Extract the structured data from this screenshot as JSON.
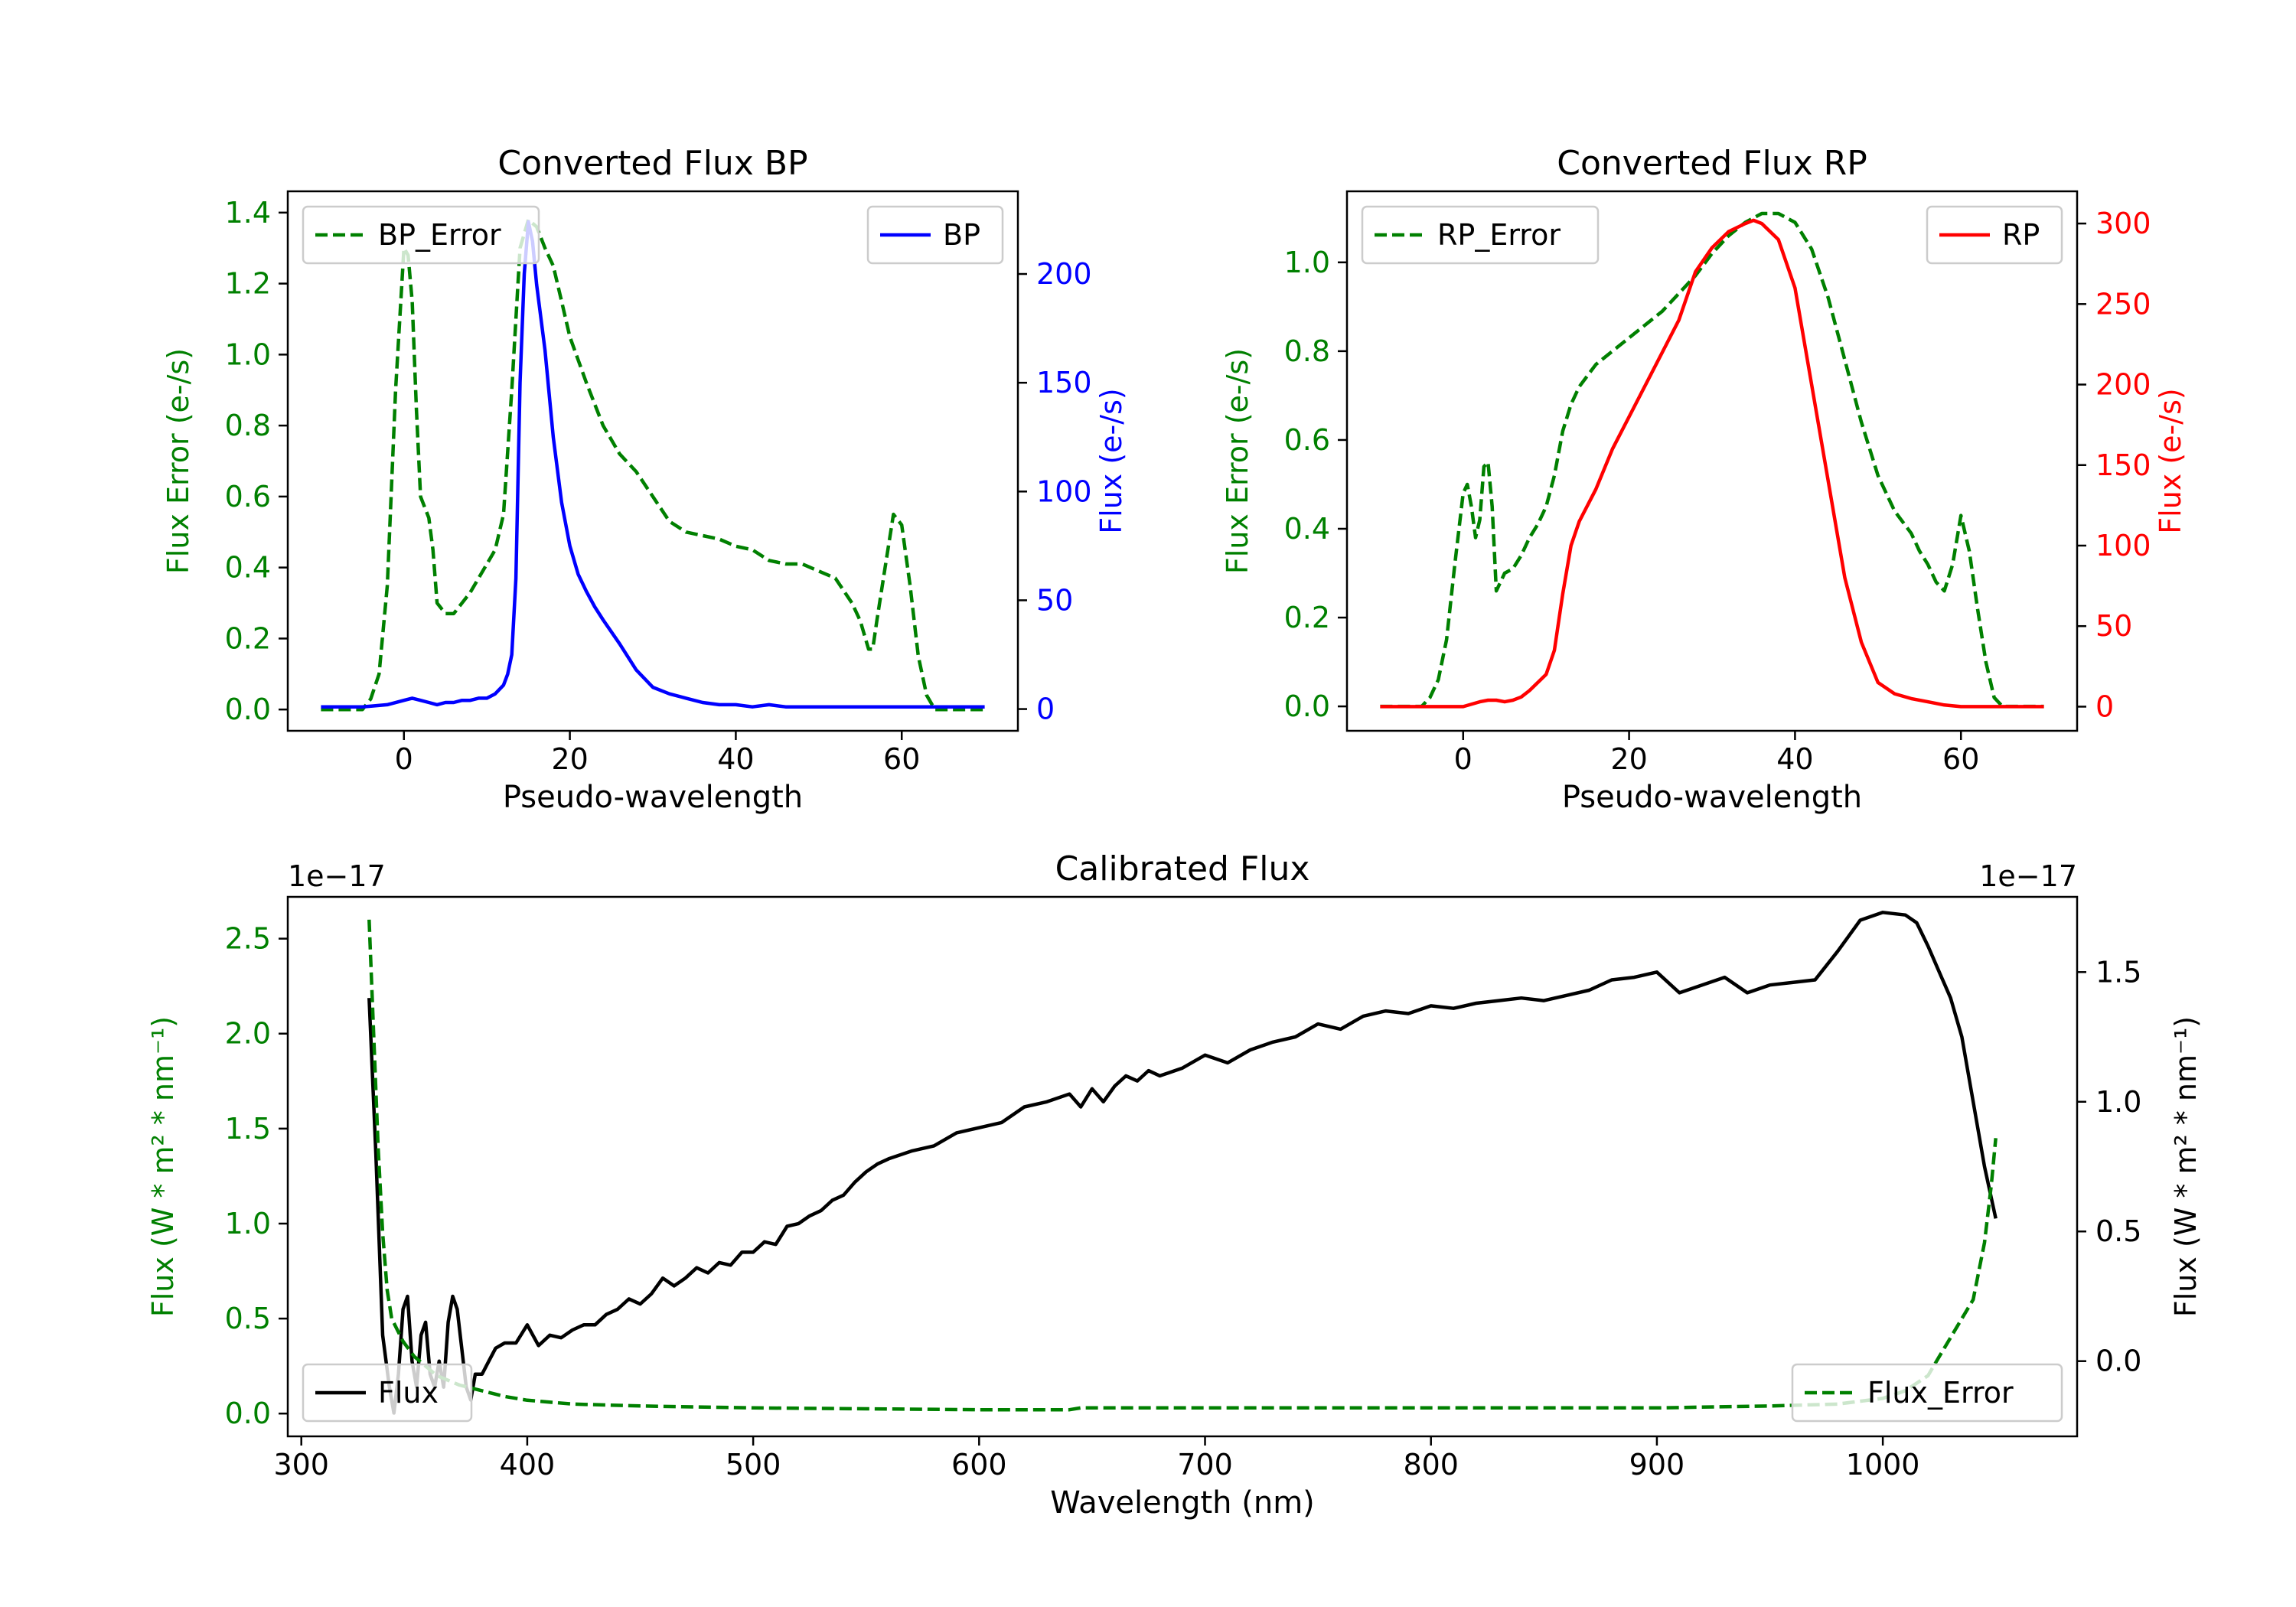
{
  "colors": {
    "err": "#008000",
    "bp": "#0000ff",
    "rp": "#ff0000",
    "flux": "#000000",
    "axis": "#000000"
  },
  "chart_data": [
    {
      "id": "bp",
      "type": "line",
      "title": "Converted Flux BP",
      "xlabel": "Pseudo-wavelength",
      "ylabel_left": "Flux Error (e-/s)",
      "ylabel_right": "Flux (e-/s)",
      "xlim": [
        -14,
        74
      ],
      "ylim_left": [
        -0.06,
        1.46
      ],
      "ylim_right": [
        -10,
        238
      ],
      "xticks": [
        0,
        20,
        40,
        60
      ],
      "xtick_labels": [
        "0",
        "20",
        "40",
        "60"
      ],
      "yticks_left": [
        0.0,
        0.2,
        0.4,
        0.6,
        0.8,
        1.0,
        1.2,
        1.4
      ],
      "ytick_labels_left": [
        "0.0",
        "0.2",
        "0.4",
        "0.6",
        "0.8",
        "1.0",
        "1.2",
        "1.4"
      ],
      "yticks_right": [
        0,
        50,
        100,
        150,
        200
      ],
      "ytick_labels_right": [
        "0",
        "50",
        "100",
        "150",
        "200"
      ],
      "legend_left": {
        "label": "BP_Error",
        "position": "upper left"
      },
      "legend_right": {
        "label": "BP",
        "position": "upper right"
      },
      "series": [
        {
          "name": "BP_Error",
          "axis": "left",
          "style": "dashed",
          "color": "#008000",
          "x": [
            -10,
            -5,
            -4,
            -3,
            -2,
            -1,
            0,
            0.5,
            1,
            1.5,
            2,
            3,
            3.5,
            4,
            5,
            6,
            7,
            8,
            9,
            10,
            11,
            12,
            13,
            14,
            15,
            16,
            17,
            18,
            19,
            20,
            22,
            24,
            26,
            28,
            30,
            32,
            34,
            36,
            38,
            40,
            42,
            44,
            46,
            48,
            50,
            52,
            54,
            55,
            56,
            56.5,
            57,
            58,
            59,
            60,
            61,
            62,
            63,
            64,
            65,
            70
          ],
          "y": [
            0.0,
            0.0,
            0.03,
            0.1,
            0.35,
            0.9,
            1.3,
            1.28,
            1.15,
            0.85,
            0.6,
            0.54,
            0.45,
            0.3,
            0.27,
            0.27,
            0.3,
            0.33,
            0.37,
            0.41,
            0.45,
            0.55,
            0.9,
            1.3,
            1.38,
            1.36,
            1.3,
            1.25,
            1.15,
            1.05,
            0.92,
            0.8,
            0.72,
            0.67,
            0.6,
            0.53,
            0.5,
            0.49,
            0.48,
            0.46,
            0.45,
            0.42,
            0.41,
            0.41,
            0.39,
            0.37,
            0.3,
            0.25,
            0.17,
            0.17,
            0.25,
            0.4,
            0.55,
            0.52,
            0.35,
            0.15,
            0.04,
            0.0,
            0.0,
            0.0
          ]
        },
        {
          "name": "BP",
          "axis": "right",
          "style": "solid",
          "color": "#0000ff",
          "x": [
            -10,
            -5,
            -2,
            0,
            1,
            2,
            3,
            4,
            5,
            6,
            7,
            8,
            9,
            10,
            11,
            12,
            12.5,
            13,
            13.5,
            14,
            14.5,
            15,
            15.5,
            16,
            17,
            18,
            19,
            20,
            21,
            22,
            23,
            24,
            26,
            28,
            30,
            32,
            34,
            36,
            38,
            40,
            42,
            44,
            46,
            48,
            50,
            55,
            60,
            65,
            70
          ],
          "y": [
            1,
            1,
            2,
            4,
            5,
            4,
            3,
            2,
            3,
            3,
            4,
            4,
            5,
            5,
            7,
            11,
            16,
            25,
            60,
            150,
            200,
            224,
            215,
            195,
            165,
            125,
            95,
            75,
            62,
            54,
            47,
            41,
            30,
            18,
            10,
            7,
            5,
            3,
            2,
            2,
            1,
            2,
            1,
            1,
            1,
            1,
            1,
            1,
            1
          ]
        }
      ]
    },
    {
      "id": "rp",
      "type": "line",
      "title": "Converted Flux RP",
      "xlabel": "Pseudo-wavelength",
      "ylabel_left": "Flux Error (e-/s)",
      "ylabel_right": "Flux (e-/s)",
      "xlim": [
        -14,
        74
      ],
      "ylim_left": [
        -0.055,
        1.16
      ],
      "ylim_right": [
        -15,
        320
      ],
      "xticks": [
        0,
        20,
        40,
        60
      ],
      "xtick_labels": [
        "0",
        "20",
        "40",
        "60"
      ],
      "yticks_left": [
        0.0,
        0.2,
        0.4,
        0.6,
        0.8,
        1.0
      ],
      "ytick_labels_left": [
        "0.0",
        "0.2",
        "0.4",
        "0.6",
        "0.8",
        "1.0"
      ],
      "yticks_right": [
        0,
        50,
        100,
        150,
        200,
        250,
        300
      ],
      "ytick_labels_right": [
        "0",
        "50",
        "100",
        "150",
        "200",
        "250",
        "300"
      ],
      "legend_left": {
        "label": "RP_Error",
        "position": "upper left"
      },
      "legend_right": {
        "label": "RP",
        "position": "upper right"
      },
      "series": [
        {
          "name": "RP_Error",
          "axis": "left",
          "style": "dashed",
          "color": "#008000",
          "x": [
            -10,
            -5,
            -4,
            -3,
            -2,
            -1,
            0,
            0.5,
            1,
            1.5,
            2,
            2.5,
            3,
            3.5,
            4,
            4.5,
            5,
            6,
            7,
            8,
            9,
            10,
            11,
            12,
            13,
            14,
            16,
            18,
            20,
            22,
            24,
            26,
            28,
            30,
            32,
            34,
            36,
            38,
            40,
            42,
            44,
            46,
            48,
            50,
            52,
            54,
            55,
            56,
            57,
            58,
            59,
            60,
            61,
            62,
            63,
            64,
            65,
            70
          ],
          "y": [
            0.0,
            0.0,
            0.02,
            0.06,
            0.15,
            0.32,
            0.48,
            0.5,
            0.45,
            0.38,
            0.42,
            0.54,
            0.55,
            0.45,
            0.26,
            0.28,
            0.3,
            0.31,
            0.34,
            0.38,
            0.41,
            0.45,
            0.52,
            0.62,
            0.68,
            0.72,
            0.77,
            0.8,
            0.83,
            0.86,
            0.89,
            0.93,
            0.97,
            1.02,
            1.06,
            1.09,
            1.11,
            1.11,
            1.09,
            1.03,
            0.92,
            0.78,
            0.64,
            0.52,
            0.44,
            0.39,
            0.35,
            0.32,
            0.28,
            0.26,
            0.32,
            0.43,
            0.35,
            0.22,
            0.1,
            0.02,
            0.0,
            0.0
          ]
        },
        {
          "name": "RP",
          "axis": "right",
          "style": "solid",
          "color": "#ff0000",
          "x": [
            -10,
            -2,
            0,
            2,
            3,
            4,
            5,
            6,
            7,
            8,
            9,
            10,
            11,
            12,
            13,
            14,
            16,
            18,
            20,
            22,
            24,
            26,
            28,
            30,
            32,
            34,
            35,
            36,
            38,
            40,
            42,
            44,
            46,
            48,
            50,
            52,
            54,
            56,
            58,
            60,
            62,
            64,
            66,
            70
          ],
          "y": [
            0,
            0,
            0,
            3,
            4,
            4,
            3,
            4,
            6,
            10,
            15,
            20,
            35,
            70,
            100,
            115,
            135,
            160,
            180,
            200,
            220,
            240,
            270,
            285,
            295,
            300,
            302,
            300,
            290,
            260,
            200,
            140,
            80,
            40,
            15,
            8,
            5,
            3,
            1,
            0,
            0,
            0,
            0,
            0
          ]
        }
      ]
    },
    {
      "id": "cal",
      "type": "line",
      "title": "Calibrated Flux",
      "xlabel": "Wavelength (nm)",
      "ylabel_left": "Flux (W * m² * nm⁻¹)",
      "ylabel_right": "Flux (W * m² * nm⁻¹)",
      "offset_left": "1e−17",
      "offset_right": "1e−17",
      "xlim": [
        294,
        1086
      ],
      "ylim_left": [
        -0.12,
        2.72
      ],
      "ylim_right": [
        -0.29,
        1.79
      ],
      "xticks": [
        300,
        400,
        500,
        600,
        700,
        800,
        900,
        1000
      ],
      "xtick_labels": [
        "300",
        "400",
        "500",
        "600",
        "700",
        "800",
        "900",
        "1000"
      ],
      "yticks_left": [
        0.0,
        0.5,
        1.0,
        1.5,
        2.0,
        2.5
      ],
      "ytick_labels_left": [
        "0.0",
        "0.5",
        "1.0",
        "1.5",
        "2.0",
        "2.5"
      ],
      "yticks_right": [
        0.0,
        0.5,
        1.0,
        1.5
      ],
      "ytick_labels_right": [
        "0.0",
        "0.5",
        "1.0",
        "1.5"
      ],
      "legend_left": {
        "label": "Flux",
        "position": "lower left"
      },
      "legend_right": {
        "label": "Flux_Error",
        "position": "lower right"
      },
      "series": [
        {
          "name": "Flux",
          "axis": "right",
          "style": "solid",
          "color": "#000000",
          "x": [
            330,
            333,
            336,
            339,
            341,
            343,
            345,
            347,
            349,
            351,
            353,
            355,
            357,
            359,
            361,
            363,
            365,
            367,
            369,
            371,
            373,
            375,
            377,
            380,
            383,
            386,
            390,
            395,
            400,
            405,
            410,
            415,
            420,
            425,
            430,
            435,
            440,
            445,
            450,
            455,
            460,
            465,
            470,
            475,
            480,
            485,
            490,
            495,
            500,
            505,
            510,
            515,
            520,
            525,
            530,
            535,
            540,
            545,
            550,
            555,
            560,
            570,
            580,
            590,
            600,
            610,
            620,
            630,
            640,
            645,
            650,
            655,
            660,
            665,
            670,
            675,
            680,
            690,
            700,
            710,
            720,
            730,
            740,
            750,
            760,
            770,
            780,
            790,
            800,
            810,
            820,
            830,
            840,
            850,
            860,
            870,
            880,
            890,
            900,
            910,
            920,
            930,
            940,
            950,
            960,
            970,
            980,
            990,
            1000,
            1010,
            1015,
            1020,
            1025,
            1030,
            1035,
            1040,
            1045,
            1050
          ],
          "y": [
            1.4,
            0.8,
            0.1,
            -0.1,
            -0.2,
            -0.05,
            0.2,
            0.25,
            0.0,
            -0.1,
            0.1,
            0.15,
            -0.05,
            -0.1,
            0.0,
            -0.1,
            0.15,
            0.25,
            0.2,
            0.05,
            -0.1,
            -0.15,
            -0.05,
            -0.05,
            0.0,
            0.05,
            0.07,
            0.07,
            0.14,
            0.06,
            0.1,
            0.09,
            0.12,
            0.14,
            0.14,
            0.18,
            0.2,
            0.24,
            0.22,
            0.26,
            0.32,
            0.29,
            0.32,
            0.36,
            0.34,
            0.38,
            0.37,
            0.42,
            0.42,
            0.46,
            0.45,
            0.52,
            0.53,
            0.56,
            0.58,
            0.62,
            0.64,
            0.69,
            0.73,
            0.76,
            0.78,
            0.81,
            0.83,
            0.88,
            0.9,
            0.92,
            0.98,
            1.0,
            1.03,
            0.98,
            1.05,
            1.0,
            1.06,
            1.1,
            1.08,
            1.12,
            1.1,
            1.13,
            1.18,
            1.15,
            1.2,
            1.23,
            1.25,
            1.3,
            1.28,
            1.33,
            1.35,
            1.34,
            1.37,
            1.36,
            1.38,
            1.39,
            1.4,
            1.39,
            1.41,
            1.43,
            1.47,
            1.48,
            1.5,
            1.42,
            1.45,
            1.48,
            1.42,
            1.45,
            1.46,
            1.47,
            1.58,
            1.7,
            1.73,
            1.72,
            1.69,
            1.6,
            1.5,
            1.4,
            1.25,
            1.0,
            0.75,
            0.55
          ]
        },
        {
          "name": "Flux_Error",
          "axis": "left",
          "style": "dashed",
          "color": "#008000",
          "x": [
            330,
            332,
            334,
            336,
            338,
            340,
            345,
            350,
            355,
            360,
            370,
            380,
            390,
            400,
            420,
            450,
            500,
            550,
            600,
            630,
            640,
            645,
            650,
            700,
            800,
            900,
            950,
            980,
            1000,
            1010,
            1020,
            1025,
            1030,
            1035,
            1040,
            1045,
            1048,
            1050
          ],
          "y": [
            2.6,
            2.0,
            1.4,
            0.95,
            0.65,
            0.5,
            0.38,
            0.3,
            0.25,
            0.2,
            0.15,
            0.12,
            0.09,
            0.07,
            0.05,
            0.04,
            0.03,
            0.025,
            0.02,
            0.02,
            0.02,
            0.03,
            0.03,
            0.03,
            0.03,
            0.03,
            0.04,
            0.05,
            0.08,
            0.12,
            0.2,
            0.3,
            0.4,
            0.5,
            0.6,
            0.9,
            1.2,
            1.45
          ]
        }
      ]
    }
  ]
}
